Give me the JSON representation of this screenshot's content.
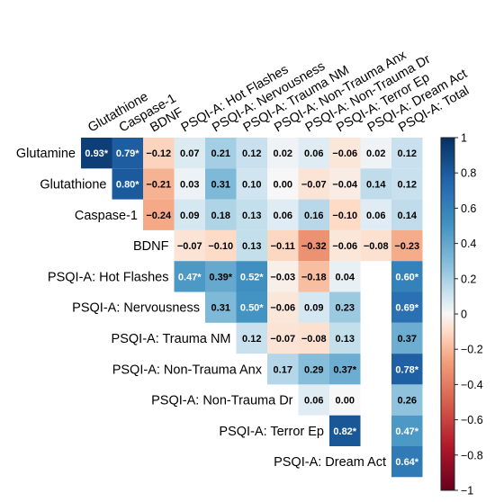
{
  "chart_data": {
    "type": "heatmap",
    "title": "",
    "columns": [
      "Glutathione",
      "Caspase-1",
      "BDNF",
      "PSQI-A: Hot Flashes",
      "PSQI-A: Nervousness",
      "PSQI-A: Trauma NM",
      "PSQI-A: Non-Trauma Anx",
      "PSQI-A: Non-Trauma Dr",
      "PSQI-A: Terror Ep",
      "PSQI-A: Dream Act",
      "PSQI-A: Total"
    ],
    "rows": [
      "Glutamine",
      "Glutathione",
      "Caspase-1",
      "BDNF",
      "PSQI-A: Hot Flashes",
      "PSQI-A: Nervousness",
      "PSQI-A: Trauma NM",
      "PSQI-A: Non-Trauma Anx",
      "PSQI-A: Non-Trauma Dr",
      "PSQI-A: Terror Ep",
      "PSQI-A: Dream Act"
    ],
    "values": [
      [
        0.93,
        0.79,
        -0.12,
        0.07,
        0.21,
        0.12,
        0.02,
        0.06,
        -0.06,
        0.02,
        0.12
      ],
      [
        null,
        0.8,
        -0.21,
        0.03,
        0.31,
        0.1,
        0.0,
        -0.07,
        -0.04,
        0.14,
        0.12
      ],
      [
        null,
        null,
        -0.24,
        0.09,
        0.18,
        0.13,
        0.06,
        0.16,
        -0.1,
        0.06,
        0.14
      ],
      [
        null,
        null,
        null,
        -0.07,
        -0.1,
        0.13,
        -0.11,
        -0.32,
        -0.06,
        -0.08,
        -0.23
      ],
      [
        null,
        null,
        null,
        0.47,
        0.39,
        0.52,
        -0.03,
        -0.18,
        0.04,
        null,
        0.6
      ],
      [
        null,
        null,
        null,
        null,
        0.31,
        0.5,
        -0.06,
        0.09,
        0.23,
        null,
        0.69
      ],
      [
        null,
        null,
        null,
        null,
        null,
        0.12,
        -0.07,
        -0.08,
        0.13,
        null,
        0.37
      ],
      [
        null,
        null,
        null,
        null,
        null,
        null,
        0.17,
        0.29,
        0.37,
        null,
        0.78
      ],
      [
        null,
        null,
        null,
        null,
        null,
        null,
        null,
        0.06,
        0.0,
        null,
        0.26
      ],
      [
        null,
        null,
        null,
        null,
        null,
        null,
        null,
        null,
        0.82,
        null,
        0.47
      ],
      [
        null,
        null,
        null,
        null,
        null,
        null,
        null,
        null,
        null,
        null,
        0.64
      ]
    ],
    "labels": [
      [
        "0.93*",
        "0.79*",
        "−0.12",
        "0.07",
        "0.21",
        "0.12",
        "0.02",
        "0.06",
        "−0.06",
        "0.02",
        "0.12"
      ],
      [
        null,
        "0.80*",
        "−0.21",
        "0.03",
        "0.31",
        "0.10",
        "0.00",
        "−0.07",
        "−0.04",
        "0.14",
        "0.12"
      ],
      [
        null,
        null,
        "−0.24",
        "0.09",
        "0.18",
        "0.13",
        "0.06",
        "0.16",
        "−0.10",
        "0.06",
        "0.14"
      ],
      [
        null,
        null,
        null,
        "−0.07",
        "−0.10",
        "0.13",
        "−0.11",
        "−0.32",
        "−0.06",
        "−0.08",
        "−0.23"
      ],
      [
        null,
        null,
        null,
        "0.47*",
        "0.39*",
        "0.52*",
        "−0.03",
        "−0.18",
        "0.04",
        null,
        "0.60*"
      ],
      [
        null,
        null,
        null,
        null,
        "0.31",
        "0.50*",
        "−0.06",
        "0.09",
        "0.23",
        null,
        "0.69*"
      ],
      [
        null,
        null,
        null,
        null,
        null,
        "0.12",
        "−0.07",
        "−0.08",
        "0.13",
        null,
        "0.37"
      ],
      [
        null,
        null,
        null,
        null,
        null,
        null,
        "0.17",
        "0.29",
        "0.37*",
        null,
        "0.78*"
      ],
      [
        null,
        null,
        null,
        null,
        null,
        null,
        null,
        "0.06",
        "0.00",
        null,
        "0.26"
      ],
      [
        null,
        null,
        null,
        null,
        null,
        null,
        null,
        null,
        "0.82*",
        null,
        "0.47*"
      ],
      [
        null,
        null,
        null,
        null,
        null,
        null,
        null,
        null,
        null,
        null,
        "0.64*"
      ]
    ],
    "scale": {
      "range": [
        -1,
        1
      ],
      "ticks": [
        1,
        0.8,
        0.6,
        0.4,
        0.2,
        0,
        -0.2,
        -0.4,
        -0.6,
        -0.8,
        -1
      ],
      "tick_labels": [
        "1",
        "0.8",
        "0.6",
        "0.4",
        "0.2",
        "0",
        "−0.2",
        "−0.4",
        "−0.6",
        "−0.8",
        "−1"
      ],
      "colors": {
        "negative_end": "#67001f",
        "neutral": "#f7f7f7",
        "positive_end": "#053061"
      },
      "legend_placement": "right"
    },
    "grid": false
  }
}
